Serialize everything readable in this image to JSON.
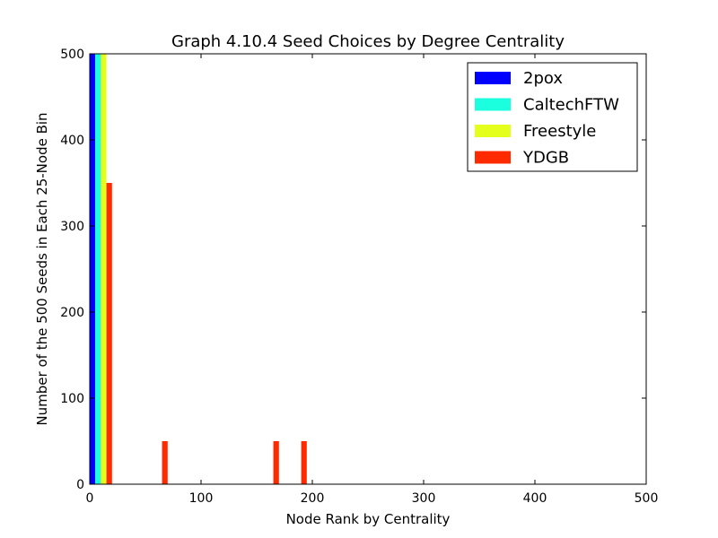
{
  "chart_data": {
    "type": "bar",
    "title": "Graph 4.10.4 Seed Choices by Degree Centrality",
    "xlabel": "Node Rank by Centrality",
    "ylabel": "Number of the 500 Seeds in Each 25-Node Bin",
    "xlim": [
      0,
      500
    ],
    "ylim": [
      0,
      500
    ],
    "xticks": [
      0,
      100,
      200,
      300,
      400,
      500
    ],
    "yticks": [
      0,
      100,
      200,
      300,
      400,
      500
    ],
    "legend_position": "top-right",
    "grid": false,
    "bar_width": 5,
    "series": [
      {
        "name": "2pox",
        "color": "#0000ff",
        "bars": [
          {
            "x": 2.5,
            "y": 500
          }
        ]
      },
      {
        "name": "CaltechFTW",
        "color": "#1bffdf",
        "bars": [
          {
            "x": 7.5,
            "y": 500
          }
        ]
      },
      {
        "name": "Freestyle",
        "color": "#e4ff1b",
        "bars": [
          {
            "x": 12.5,
            "y": 500
          }
        ]
      },
      {
        "name": "YDGB",
        "color": "#ff2a00",
        "bars": [
          {
            "x": 17.5,
            "y": 350
          },
          {
            "x": 67.5,
            "y": 50
          },
          {
            "x": 167.5,
            "y": 50
          },
          {
            "x": 192.5,
            "y": 50
          }
        ]
      }
    ]
  }
}
